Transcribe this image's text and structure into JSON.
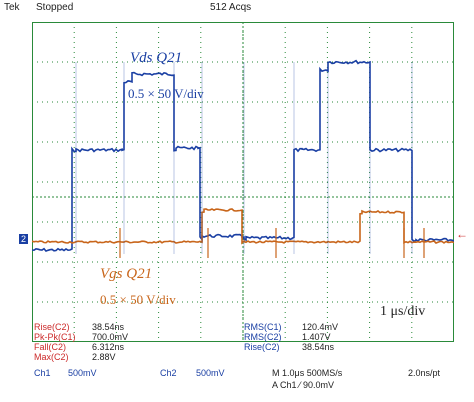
{
  "header": {
    "brand": "Tek",
    "status": "Stopped",
    "acqs": "512 Acqs"
  },
  "annotations": {
    "vds_label": "Vds Q21",
    "vds_scale": "0.5 × 50 V/div",
    "vgs_label": "Vgs Q21",
    "vgs_scale": "0.5 × 50 V/div",
    "time_div": "1 μs/div"
  },
  "measurements_left": [
    {
      "label": "Rise(C2)",
      "value": "38.54ns"
    },
    {
      "label": "Pk-Pk(C1)",
      "value": "700.0mV"
    },
    {
      "label": "Fall(C2)",
      "value": "6.312ns"
    },
    {
      "label": "Max(C2)",
      "value": "2.88V"
    }
  ],
  "measurements_right": [
    {
      "label": "RMS(C1)",
      "value": "120.4mV"
    },
    {
      "label": "RMS(C2)",
      "value": "1.407V"
    },
    {
      "label": "Rise(C2)",
      "value": "38.54ns"
    }
  ],
  "footer": {
    "ch1": "Ch1",
    "ch1_scale": "500mV",
    "ch2": "Ch2",
    "ch2_scale": "500mV",
    "timebase": "M 1.0μs 500MS/s",
    "pt": "2.0ns/pt",
    "trigger": "A  Ch1  ⁄  90.0mV"
  },
  "channel_marker": "2",
  "colors": {
    "ch1": "#1a3fa3",
    "ch2": "#c8651a",
    "grid": "#2a8a3a",
    "meas_ch1_text": "#cc2a2a",
    "meas_ch2_text": "#1a3fa3"
  }
}
